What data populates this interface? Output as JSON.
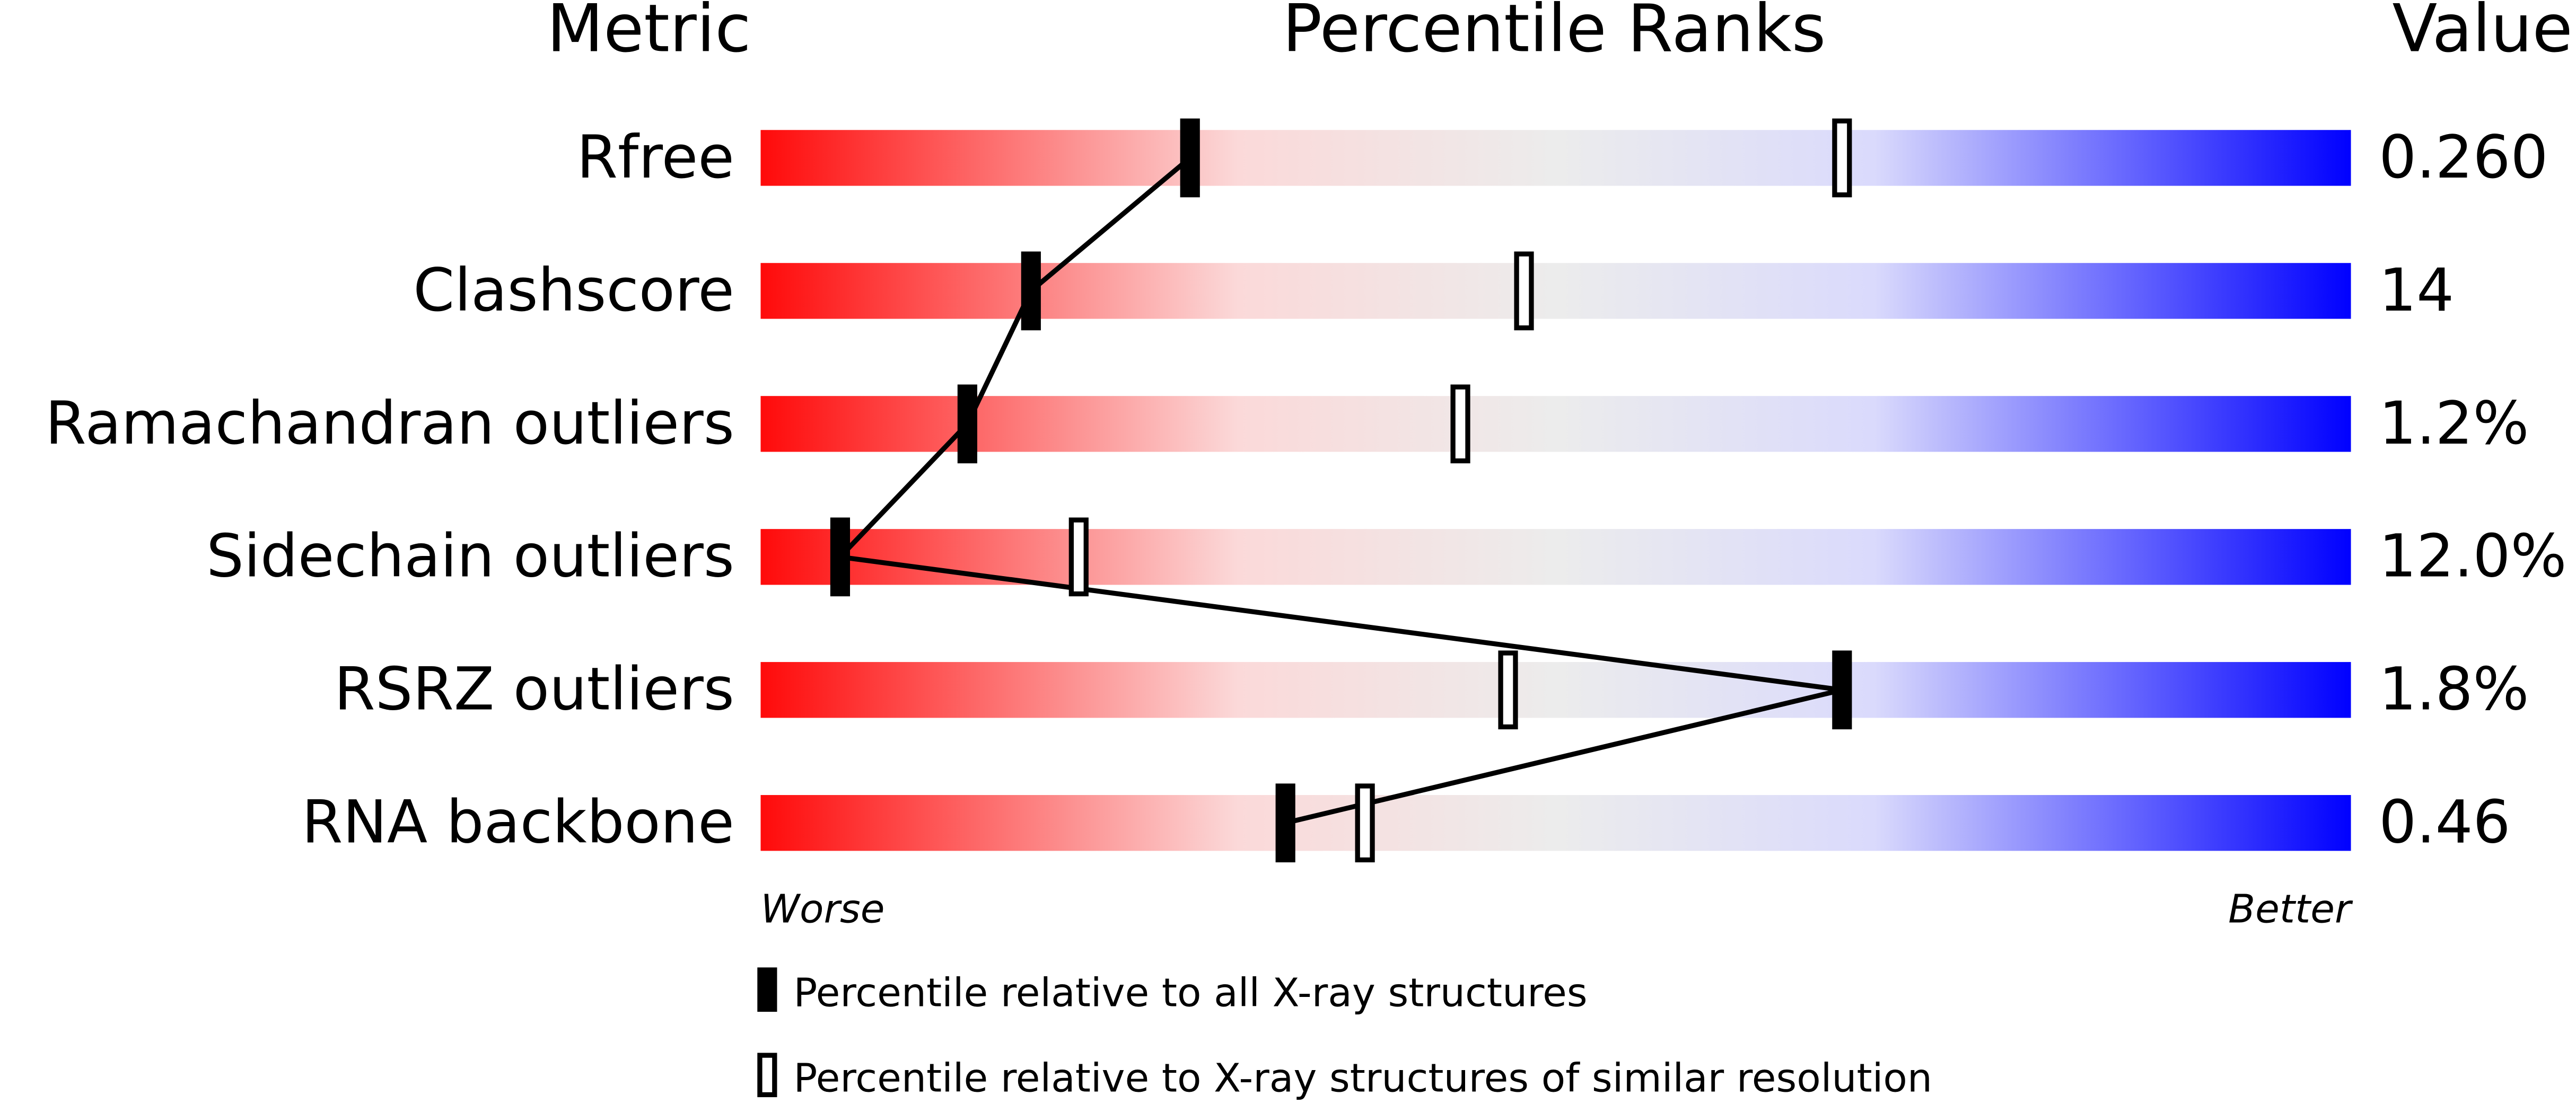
{
  "chart_data": {
    "type": "percentile",
    "title": "Percentile Ranks",
    "metric_header": "Metric",
    "value_header": "Value",
    "categories": [
      "Rfree",
      "Clashscore",
      "Ramachandran outliers",
      "Sidechain outliers",
      "RSRZ outliers",
      "RNA backbone"
    ],
    "series": [
      {
        "name": "Percentile relative to all X-ray structures",
        "color": "#000000",
        "values": [
          27,
          17,
          13,
          5,
          68,
          33
        ]
      },
      {
        "name": "Percentile relative to X-ray structures of similar resolution",
        "color": "#000000",
        "values": [
          68,
          48,
          44,
          20,
          47,
          38
        ]
      }
    ],
    "value_column": [
      "0.260",
      "14",
      "1.2%",
      "12.0%",
      "1.8%",
      "0.46"
    ],
    "xlim": [
      0,
      100
    ],
    "worse_label": "Worse",
    "better_label": "Better"
  }
}
